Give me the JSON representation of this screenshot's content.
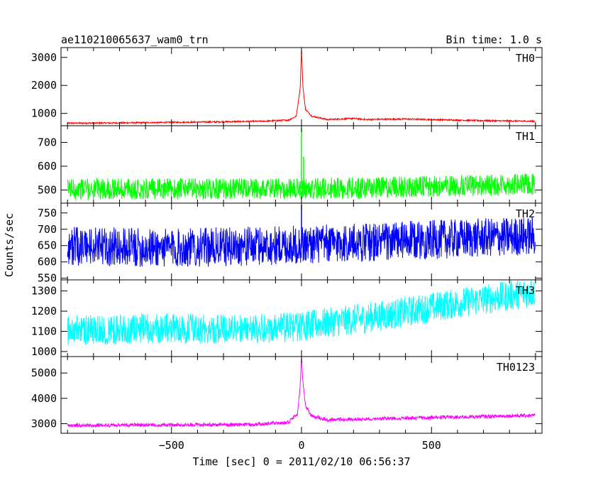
{
  "chart_data": {
    "type": "line",
    "title_left": "ae110210065637_wam0_trn",
    "title_right": "Bin time: 1.0 s",
    "xlabel": "Time [sec] 0 = 2011/02/10 06:56:37",
    "ylabel": "Counts/sec",
    "xlim": [
      -925,
      925
    ],
    "x_ticks": [
      "−500",
      "0",
      "500"
    ],
    "x_tick_values": [
      -500,
      0,
      500
    ],
    "grid": false,
    "panels": [
      {
        "name": "TH0",
        "color": "#ff0000",
        "ylim": [
          560,
          3350
        ],
        "y_ticks": [
          "1000",
          "2000",
          "3000"
        ],
        "y_tick_values": [
          1000,
          2000,
          3000
        ],
        "x": [
          -900,
          -700,
          -500,
          -300,
          -150,
          -50,
          -20,
          -5,
          0,
          5,
          15,
          40,
          100,
          200,
          250,
          300,
          400,
          500,
          600,
          700,
          800,
          900
        ],
        "y": [
          650,
          660,
          680,
          700,
          720,
          760,
          900,
          1900,
          3350,
          2000,
          1150,
          900,
          780,
          820,
          780,
          790,
          800,
          780,
          760,
          740,
          730,
          720
        ],
        "noise": 25
      },
      {
        "name": "TH1",
        "color": "#00ff00",
        "ylim": [
          445,
          770
        ],
        "y_ticks": [
          "500",
          "600",
          "700"
        ],
        "y_tick_values": [
          500,
          600,
          700
        ],
        "x": [
          -900,
          -500,
          0,
          500,
          900
        ],
        "y": [
          505,
          505,
          505,
          515,
          525
        ],
        "noise": 45,
        "spikes": [
          {
            "x": 0,
            "y": 760
          },
          {
            "x": 8,
            "y": 640
          }
        ]
      },
      {
        "name": "TH2",
        "color": "#0000ff",
        "ylim": [
          545,
          780
        ],
        "y_ticks": [
          "550",
          "600",
          "650",
          "700",
          "750"
        ],
        "y_tick_values": [
          550,
          600,
          650,
          700,
          750
        ],
        "x": [
          -900,
          -500,
          0,
          500,
          900
        ],
        "y": [
          648,
          642,
          652,
          668,
          680
        ],
        "noise": 60,
        "spikes": [
          {
            "x": 0,
            "y": 775
          }
        ]
      },
      {
        "name": "TH3",
        "color": "#00ffff",
        "ylim": [
          975,
          1355
        ],
        "y_ticks": [
          "1000",
          "1100",
          "1200",
          "1300"
        ],
        "y_tick_values": [
          1000,
          1100,
          1200,
          1300
        ],
        "x": [
          -900,
          -500,
          -200,
          0,
          300,
          600,
          900
        ],
        "y": [
          1105,
          1115,
          1110,
          1125,
          1175,
          1240,
          1295
        ],
        "noise": 75
      },
      {
        "name": "TH0123",
        "color": "#ff00ff",
        "ylim": [
          2620,
          5650
        ],
        "y_ticks": [
          "3000",
          "4000",
          "5000"
        ],
        "y_tick_values": [
          3000,
          4000,
          5000
        ],
        "x": [
          -900,
          -500,
          -200,
          -50,
          -15,
          -5,
          0,
          5,
          15,
          40,
          100,
          300,
          600,
          900
        ],
        "y": [
          2930,
          2950,
          2960,
          3050,
          3400,
          4500,
          5650,
          4700,
          3700,
          3300,
          3150,
          3200,
          3260,
          3330
        ],
        "noise": 70
      }
    ]
  }
}
